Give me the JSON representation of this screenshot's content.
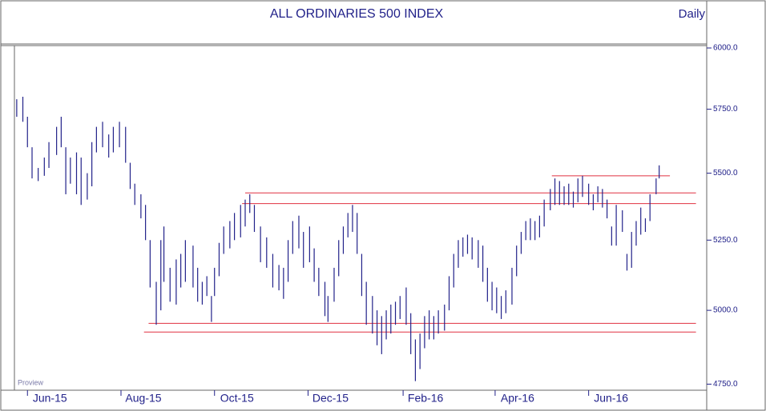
{
  "chart_data": {
    "type": "hilo",
    "title": "ALL ORDINARIES 500 INDEX",
    "subtitle": "Daily",
    "watermark": "Proview",
    "color": "#22228a",
    "log_scale": true,
    "xlim": [
      -8.5,
      443
    ],
    "ylim": [
      4730,
      6010
    ],
    "xticks": [
      {
        "value": 0,
        "label": "Jun-15"
      },
      {
        "value": 61,
        "label": "Aug-15"
      },
      {
        "value": 122,
        "label": "Oct-15"
      },
      {
        "value": 183,
        "label": "Dec-15"
      },
      {
        "value": 245,
        "label": "Feb-16"
      },
      {
        "value": 305,
        "label": "Apr-16"
      },
      {
        "value": 366,
        "label": "Jun-16"
      }
    ],
    "yticks": [
      {
        "value": 4750,
        "label": "4750.0"
      },
      {
        "value": 5000,
        "label": "5000.0"
      },
      {
        "value": 5250,
        "label": "5250.0"
      },
      {
        "value": 5500,
        "label": "5500.0"
      },
      {
        "value": 5750,
        "label": "5750.0"
      },
      {
        "value": 6000,
        "label": "6000.0"
      }
    ],
    "x": [
      -7,
      -3,
      0,
      3,
      7,
      11,
      14,
      19,
      22,
      25,
      28,
      32,
      35,
      39,
      42,
      45,
      49,
      53,
      56,
      60,
      64,
      67,
      70,
      74,
      77,
      80,
      84,
      87,
      89,
      93,
      97,
      100,
      103,
      108,
      111,
      114,
      117,
      120,
      122,
      125,
      128,
      132,
      135,
      139,
      142,
      145,
      148,
      152,
      156,
      160,
      164,
      167,
      170,
      173,
      177,
      180,
      184,
      187,
      190,
      194,
      196,
      200,
      203,
      206,
      209,
      212,
      215,
      218,
      221,
      225,
      228,
      231,
      234,
      237,
      240,
      243,
      247,
      250,
      253,
      256,
      259,
      262,
      265,
      268,
      272,
      275,
      278,
      281,
      284,
      287,
      290,
      294,
      297,
      300,
      303,
      306,
      309,
      312,
      316,
      319,
      322,
      325,
      328,
      331,
      334,
      337,
      341,
      344,
      347,
      350,
      353,
      356,
      359,
      362,
      366,
      369,
      372,
      375,
      378,
      381,
      384,
      388,
      391,
      394,
      397,
      400,
      403,
      406,
      410,
      412
    ],
    "high": [
      5790,
      5800,
      5720,
      5600,
      5520,
      5560,
      5620,
      5680,
      5720,
      5600,
      5560,
      5580,
      5560,
      5500,
      5620,
      5680,
      5700,
      5650,
      5680,
      5700,
      5680,
      5540,
      5460,
      5420,
      5380,
      5250,
      5100,
      5250,
      5300,
      5150,
      5180,
      5200,
      5250,
      5230,
      5150,
      5100,
      5120,
      5050,
      5150,
      5240,
      5300,
      5320,
      5350,
      5380,
      5400,
      5420,
      5380,
      5300,
      5260,
      5200,
      5160,
      5150,
      5250,
      5320,
      5340,
      5280,
      5300,
      5220,
      5150,
      5100,
      5050,
      5150,
      5250,
      5300,
      5350,
      5380,
      5350,
      5200,
      5100,
      5050,
      5000,
      4980,
      5000,
      5020,
      5030,
      5050,
      5080,
      4990,
      4900,
      4920,
      4980,
      5000,
      4980,
      5000,
      5020,
      5120,
      5200,
      5250,
      5260,
      5270,
      5260,
      5250,
      5230,
      5150,
      5100,
      5080,
      5050,
      5070,
      5150,
      5230,
      5280,
      5320,
      5330,
      5320,
      5340,
      5400,
      5440,
      5480,
      5470,
      5450,
      5460,
      5430,
      5480,
      5490,
      5460,
      5420,
      5450,
      5440,
      5400,
      5300,
      5380,
      5360,
      5200,
      5280,
      5320,
      5370,
      5330,
      5420,
      5480,
      5530
    ],
    "low": [
      5720,
      5700,
      5600,
      5480,
      5470,
      5490,
      5520,
      5570,
      5600,
      5420,
      5460,
      5420,
      5380,
      5400,
      5450,
      5580,
      5600,
      5560,
      5580,
      5600,
      5540,
      5440,
      5380,
      5330,
      5250,
      5080,
      4950,
      5000,
      5100,
      5030,
      5020,
      5080,
      5100,
      5080,
      5030,
      5020,
      5050,
      4960,
      5050,
      5120,
      5200,
      5220,
      5250,
      5260,
      5300,
      5350,
      5280,
      5170,
      5150,
      5080,
      5070,
      5040,
      5100,
      5200,
      5220,
      5150,
      5170,
      5100,
      5050,
      4980,
      4960,
      5030,
      5120,
      5200,
      5260,
      5280,
      5200,
      5050,
      4950,
      4920,
      4880,
      4850,
      4900,
      4920,
      4950,
      4970,
      4950,
      4850,
      4760,
      4800,
      4870,
      4900,
      4900,
      4920,
      4930,
      5000,
      5080,
      5150,
      5190,
      5200,
      5180,
      5150,
      5100,
      5030,
      5000,
      4990,
      4970,
      4990,
      5020,
      5120,
      5200,
      5250,
      5250,
      5250,
      5260,
      5300,
      5360,
      5380,
      5380,
      5380,
      5380,
      5370,
      5390,
      5410,
      5380,
      5360,
      5390,
      5370,
      5330,
      5230,
      5230,
      5280,
      5140,
      5150,
      5230,
      5270,
      5280,
      5320,
      5420,
      5480
    ],
    "levels": [
      {
        "value": 5490,
        "x": [
          342,
          419
        ],
        "color": "#e03040"
      },
      {
        "value": 5425,
        "x": [
          142,
          436
        ],
        "color": "#e03040"
      },
      {
        "value": 5385,
        "x": [
          140,
          436
        ],
        "color": "#e03040"
      },
      {
        "value": 4955,
        "x": [
          79,
          436
        ],
        "color": "#e03040"
      },
      {
        "value": 4925,
        "x": [
          76,
          436
        ],
        "color": "#e03040"
      }
    ]
  }
}
